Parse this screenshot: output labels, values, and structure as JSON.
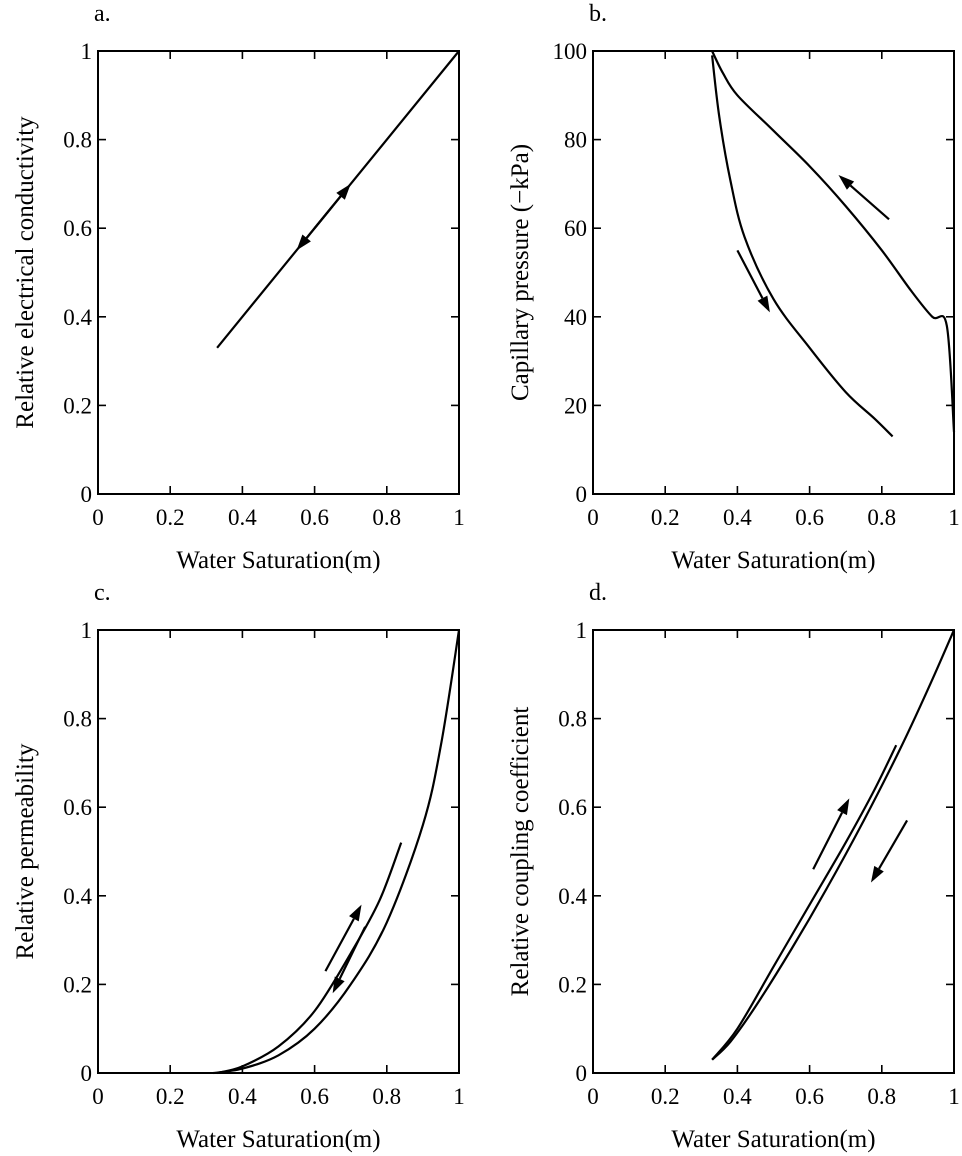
{
  "chart_data": [
    {
      "panel": "a.",
      "type": "line",
      "xlabel": "Water Saturation(m)",
      "ylabel": "Relative electrical conductivity",
      "xlim": [
        0,
        1
      ],
      "ylim": [
        0,
        1
      ],
      "xticks": [
        "0",
        "0.2",
        "0.4",
        "0.6",
        "0.8",
        "1"
      ],
      "yticks": [
        "0",
        "0.2",
        "0.4",
        "0.6",
        "0.8",
        "1"
      ],
      "series": [
        {
          "x": [
            0.33,
            1.0
          ],
          "y": [
            0.33,
            1.0
          ]
        }
      ],
      "arrows": [
        {
          "from": [
            0.6,
            0.6
          ],
          "to": [
            0.7,
            0.7
          ]
        },
        {
          "from": [
            0.65,
            0.65
          ],
          "to": [
            0.55,
            0.55
          ]
        }
      ]
    },
    {
      "panel": "b.",
      "type": "line",
      "xlabel": "Water Saturation(m)",
      "ylabel": "Capillary pressure (−kPa)",
      "xlim": [
        0,
        1
      ],
      "ylim": [
        0,
        100
      ],
      "xticks": [
        "0",
        "0.2",
        "0.4",
        "0.6",
        "0.8",
        "1"
      ],
      "yticks": [
        "0",
        "20",
        "40",
        "60",
        "80",
        "100"
      ],
      "series": [
        {
          "x": [
            0.33,
            0.36,
            0.4,
            0.5,
            0.6,
            0.7,
            0.8,
            0.88,
            0.94,
            0.98,
            1.0
          ],
          "y": [
            100,
            95,
            90,
            82,
            74,
            65,
            55,
            46,
            40,
            38,
            14
          ]
        },
        {
          "x": [
            0.33,
            0.35,
            0.38,
            0.42,
            0.5,
            0.6,
            0.7,
            0.78,
            0.83
          ],
          "y": [
            99,
            85,
            71,
            58,
            44,
            33,
            23,
            17,
            13
          ]
        }
      ],
      "arrows": [
        {
          "from": [
            0.82,
            62
          ],
          "to": [
            0.68,
            72
          ]
        },
        {
          "from": [
            0.4,
            55
          ],
          "to": [
            0.49,
            41
          ]
        }
      ]
    },
    {
      "panel": "c.",
      "type": "line",
      "xlabel": "Water Saturation(m)",
      "ylabel": "Relative permeability",
      "xlim": [
        0,
        1
      ],
      "ylim": [
        0,
        1
      ],
      "xticks": [
        "0",
        "0.2",
        "0.4",
        "0.6",
        "0.8",
        "1"
      ],
      "yticks": [
        "0",
        "0.2",
        "0.4",
        "0.6",
        "0.8",
        "1"
      ],
      "series": [
        {
          "x": [
            0.32,
            0.4,
            0.5,
            0.6,
            0.7,
            0.8,
            0.9,
            0.95,
            1.0
          ],
          "y": [
            0.0,
            0.01,
            0.04,
            0.1,
            0.2,
            0.34,
            0.56,
            0.74,
            1.0
          ]
        },
        {
          "x": [
            0.33,
            0.4,
            0.5,
            0.6,
            0.7,
            0.78,
            0.84
          ],
          "y": [
            0.0,
            0.015,
            0.06,
            0.14,
            0.27,
            0.39,
            0.52
          ]
        }
      ],
      "arrows": [
        {
          "from": [
            0.63,
            0.23
          ],
          "to": [
            0.73,
            0.38
          ]
        },
        {
          "from": [
            0.74,
            0.33
          ],
          "to": [
            0.65,
            0.18
          ]
        }
      ]
    },
    {
      "panel": "d.",
      "type": "line",
      "xlabel": "Water Saturation(m)",
      "ylabel": "Relative coupling coefficient",
      "xlim": [
        0,
        1
      ],
      "ylim": [
        0,
        1
      ],
      "xticks": [
        "0",
        "0.2",
        "0.4",
        "0.6",
        "0.8",
        "1"
      ],
      "yticks": [
        "0",
        "0.2",
        "0.4",
        "0.6",
        "0.8",
        "1"
      ],
      "series": [
        {
          "x": [
            0.33,
            0.38,
            0.45,
            0.55,
            0.65,
            0.75,
            0.85,
            0.93,
            1.0
          ],
          "y": [
            0.03,
            0.07,
            0.15,
            0.28,
            0.42,
            0.57,
            0.73,
            0.87,
            1.0
          ]
        },
        {
          "x": [
            0.33,
            0.4,
            0.5,
            0.6,
            0.7,
            0.78,
            0.84
          ],
          "y": [
            0.03,
            0.1,
            0.24,
            0.38,
            0.52,
            0.64,
            0.74
          ]
        }
      ],
      "arrows": [
        {
          "from": [
            0.61,
            0.46
          ],
          "to": [
            0.71,
            0.62
          ]
        },
        {
          "from": [
            0.87,
            0.57
          ],
          "to": [
            0.77,
            0.43
          ]
        }
      ]
    }
  ]
}
